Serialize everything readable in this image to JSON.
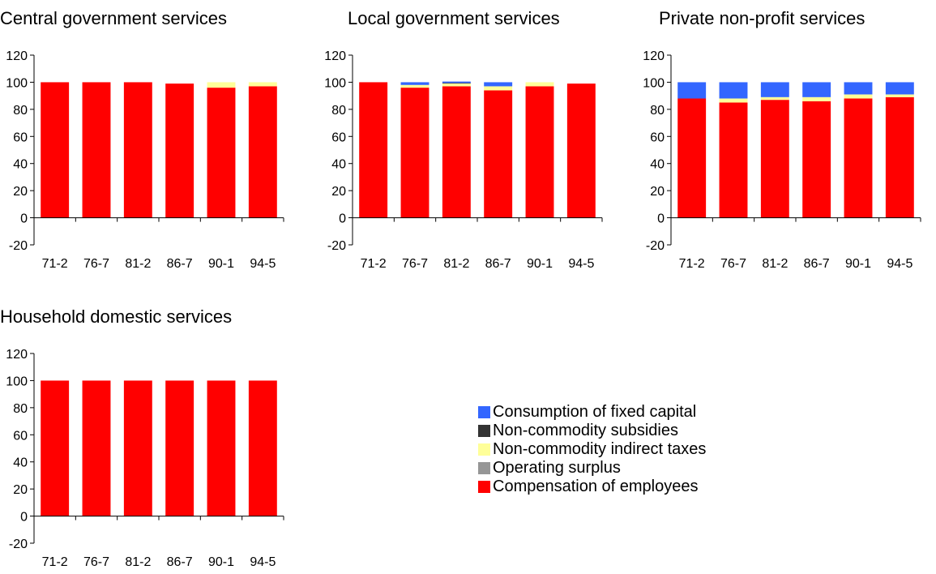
{
  "chart_data": [
    {
      "type": "bar",
      "stacked": true,
      "title": "Central government services",
      "categories": [
        "71-2",
        "76-7",
        "81-2",
        "86-7",
        "90-1",
        "94-5"
      ],
      "y_ticks": [
        "120",
        "100",
        "80",
        "60",
        "40",
        "20",
        "0",
        "-20"
      ],
      "ylim": [
        -20,
        120
      ],
      "grid": false,
      "series": [
        {
          "name": "Compensation of employees",
          "values": [
            100,
            100,
            100,
            99,
            96,
            97
          ]
        },
        {
          "name": "Operating surplus",
          "values": [
            0,
            0,
            0,
            0,
            0,
            0
          ]
        },
        {
          "name": "Non-commodity indirect taxes",
          "values": [
            0,
            0,
            0,
            0,
            4,
            3
          ]
        },
        {
          "name": "Non-commodity subsidies",
          "values": [
            0,
            0,
            0,
            0,
            0,
            0
          ]
        },
        {
          "name": "Consumption of fixed capital",
          "values": [
            0,
            0,
            0,
            0,
            0,
            0
          ]
        }
      ]
    },
    {
      "type": "bar",
      "stacked": true,
      "title": "Local government services",
      "categories": [
        "71-2",
        "76-7",
        "81-2",
        "86-7",
        "90-1",
        "94-5"
      ],
      "y_ticks": [
        "120",
        "100",
        "80",
        "60",
        "40",
        "20",
        "0",
        "-20"
      ],
      "ylim": [
        -20,
        120
      ],
      "grid": false,
      "series": [
        {
          "name": "Compensation of employees",
          "values": [
            100,
            96,
            97,
            94,
            97,
            99
          ]
        },
        {
          "name": "Operating surplus",
          "values": [
            0,
            0,
            0,
            0,
            0,
            0
          ]
        },
        {
          "name": "Non-commodity indirect taxes",
          "values": [
            0,
            2,
            2,
            3,
            3,
            0
          ]
        },
        {
          "name": "Non-commodity subsidies",
          "values": [
            0,
            0,
            0.5,
            0,
            0,
            0
          ]
        },
        {
          "name": "Consumption of fixed capital",
          "values": [
            0,
            2,
            1,
            3,
            0,
            0
          ]
        }
      ]
    },
    {
      "type": "bar",
      "stacked": true,
      "title": "Private non-profit services",
      "categories": [
        "71-2",
        "76-7",
        "81-2",
        "86-7",
        "90-1",
        "94-5"
      ],
      "y_ticks": [
        "120",
        "100",
        "80",
        "60",
        "40",
        "20",
        "0",
        "-20"
      ],
      "ylim": [
        -20,
        120
      ],
      "grid": false,
      "series": [
        {
          "name": "Compensation of employees",
          "values": [
            88,
            85,
            87,
            86,
            88,
            89
          ]
        },
        {
          "name": "Operating surplus",
          "values": [
            0,
            0,
            0,
            0,
            0,
            0
          ]
        },
        {
          "name": "Non-commodity indirect taxes",
          "values": [
            0,
            3,
            2,
            3,
            3,
            2
          ]
        },
        {
          "name": "Non-commodity subsidies",
          "values": [
            0,
            0,
            0,
            0,
            0,
            0
          ]
        },
        {
          "name": "Consumption of fixed capital",
          "values": [
            12,
            12,
            11,
            11,
            9,
            9
          ]
        }
      ]
    },
    {
      "type": "bar",
      "stacked": true,
      "title": "Household domestic services",
      "categories": [
        "71-2",
        "76-7",
        "81-2",
        "86-7",
        "90-1",
        "94-5"
      ],
      "y_ticks": [
        "120",
        "100",
        "80",
        "60",
        "40",
        "20",
        "0",
        "-20"
      ],
      "ylim": [
        -20,
        120
      ],
      "grid": false,
      "series": [
        {
          "name": "Compensation of employees",
          "values": [
            100,
            100,
            100,
            100,
            100,
            100
          ]
        },
        {
          "name": "Operating surplus",
          "values": [
            0,
            0,
            0,
            0,
            0,
            0
          ]
        },
        {
          "name": "Non-commodity indirect taxes",
          "values": [
            0,
            0,
            0,
            0,
            0,
            0
          ]
        },
        {
          "name": "Non-commodity subsidies",
          "values": [
            0,
            0,
            0,
            0,
            0,
            0
          ]
        },
        {
          "name": "Consumption of fixed capital",
          "values": [
            0,
            0,
            0,
            0,
            0,
            0
          ]
        }
      ]
    }
  ],
  "legend": {
    "placement": "bottom-center",
    "items": [
      {
        "label": "Consumption of fixed capital",
        "color": "#3366ff"
      },
      {
        "label": "Non-commodity subsidies",
        "color": "#333333"
      },
      {
        "label": "Non-commodity indirect taxes",
        "color": "#ffff99"
      },
      {
        "label": "Operating surplus",
        "color": "#969696"
      },
      {
        "label": "Compensation of employees",
        "color": "#ff0000"
      }
    ]
  },
  "series_colors": {
    "Compensation of employees": "#ff0000",
    "Operating surplus": "#969696",
    "Non-commodity indirect taxes": "#ffff99",
    "Non-commodity subsidies": "#333333",
    "Consumption of fixed capital": "#3366ff"
  }
}
